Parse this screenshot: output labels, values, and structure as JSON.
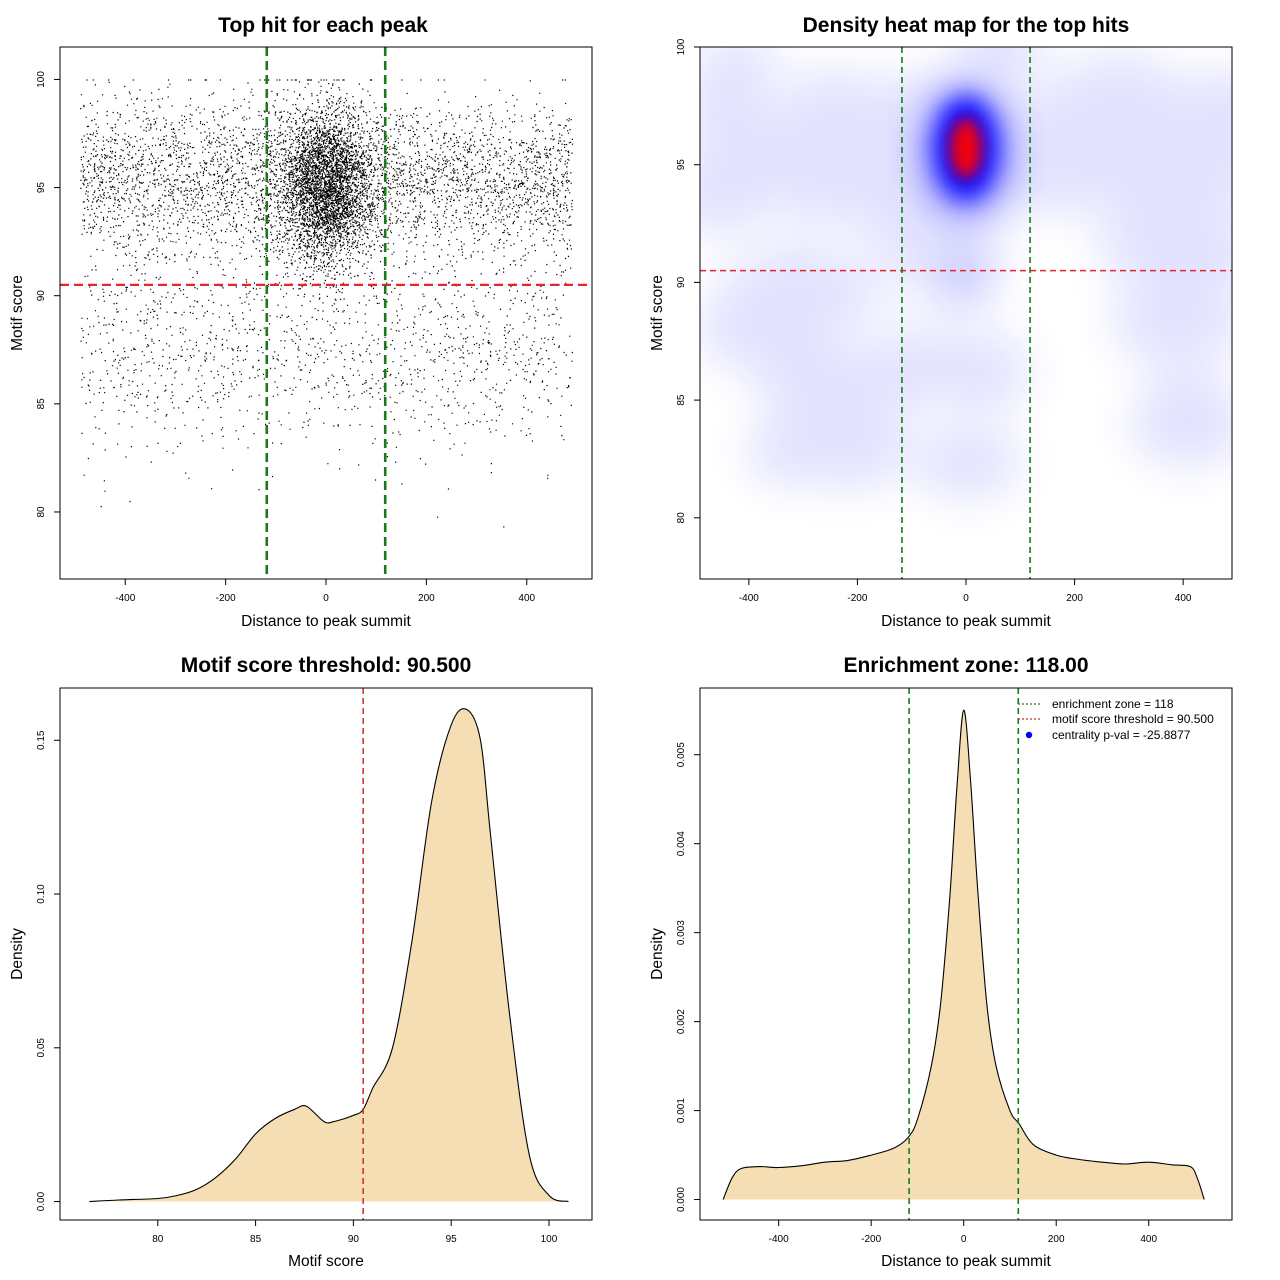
{
  "chart_data": [
    {
      "id": "p1",
      "type": "scatter",
      "title": "Top hit for each peak",
      "xlabel": "Distance to peak summit",
      "ylabel": "Motif score",
      "xlim": [
        -530,
        530
      ],
      "ylim": [
        76.9,
        101.5
      ],
      "xticks": [
        -400,
        -200,
        0,
        200,
        400
      ],
      "yticks": [
        80,
        85,
        90,
        95,
        100
      ],
      "threshold_y": 90.5,
      "zone_x": [
        -118,
        118
      ],
      "point_count": 9000,
      "colors": {
        "points": "#000000",
        "threshold": "#e4262b",
        "zone": "#1a7a1a"
      }
    },
    {
      "id": "p2",
      "type": "heatmap",
      "title": "Density heat map for the top hits",
      "xlabel": "Distance to peak summit",
      "ylabel": "Motif score",
      "xlim": [
        -490,
        490
      ],
      "ylim": [
        77.4,
        100
      ],
      "xticks": [
        -400,
        -200,
        0,
        200,
        400
      ],
      "yticks": [
        80,
        85,
        90,
        95,
        100
      ],
      "threshold_y": 90.5,
      "zone_x": [
        -118,
        118
      ],
      "hotspot": {
        "x": 0,
        "y": 95.7
      },
      "colors": {
        "low": "#ffffff",
        "mid": "#0000ff",
        "high": "#ff0000",
        "threshold": "#e4262b",
        "zone": "#1a7a1a"
      }
    },
    {
      "id": "p3",
      "type": "area",
      "title": "Motif score threshold: 90.500",
      "xlabel": "Motif score",
      "ylabel": "Density",
      "xlim": [
        75,
        102.2
      ],
      "ylim": [
        -0.006,
        0.167
      ],
      "xticks": [
        80,
        85,
        90,
        95,
        100
      ],
      "yticks": [
        0.0,
        0.05,
        0.1,
        0.15
      ],
      "ytick_labels": [
        "0.00",
        "0.05",
        "0.10",
        "0.15"
      ],
      "threshold_x": 90.5,
      "x": [
        76.5,
        78,
        80,
        81,
        82,
        83,
        84,
        85,
        86,
        87,
        87.6,
        88.5,
        89,
        90,
        90.5,
        91,
        92,
        93,
        94,
        95,
        95.8,
        96.5,
        97,
        98,
        99,
        100,
        101
      ],
      "y": [
        0.0,
        0.0005,
        0.001,
        0.002,
        0.004,
        0.008,
        0.014,
        0.022,
        0.027,
        0.03,
        0.031,
        0.026,
        0.026,
        0.028,
        0.03,
        0.037,
        0.05,
        0.085,
        0.13,
        0.155,
        0.16,
        0.15,
        0.12,
        0.06,
        0.015,
        0.002,
        0.0
      ],
      "colors": {
        "fill": "#f5deb3",
        "line": "#000000",
        "threshold": "#c2302f"
      }
    },
    {
      "id": "p4",
      "type": "area",
      "title": "Enrichment zone: 118.00",
      "xlabel": "Distance to peak summit",
      "ylabel": "Density",
      "xlim": [
        -570,
        580
      ],
      "ylim": [
        -0.00023,
        0.00575
      ],
      "xticks": [
        -400,
        -200,
        0,
        200,
        400
      ],
      "yticks": [
        0.0,
        0.001,
        0.002,
        0.003,
        0.004,
        0.005
      ],
      "ytick_labels": [
        "0.000",
        "0.001",
        "0.002",
        "0.003",
        "0.004",
        "0.005"
      ],
      "zone_x": [
        -118,
        118
      ],
      "x": [
        -520,
        -500,
        -480,
        -440,
        -400,
        -350,
        -300,
        -250,
        -200,
        -150,
        -120,
        -100,
        -70,
        -50,
        -30,
        -15,
        0,
        15,
        30,
        50,
        70,
        100,
        120,
        150,
        200,
        250,
        300,
        350,
        400,
        450,
        490,
        505,
        520
      ],
      "y": [
        0.0,
        0.00025,
        0.00035,
        0.00037,
        0.00036,
        0.00038,
        0.00042,
        0.00044,
        0.0005,
        0.00058,
        0.0007,
        0.0009,
        0.0015,
        0.0022,
        0.0034,
        0.0046,
        0.0055,
        0.0047,
        0.0035,
        0.0022,
        0.0015,
        0.001,
        0.00085,
        0.00062,
        0.0005,
        0.00045,
        0.00042,
        0.0004,
        0.00042,
        0.00039,
        0.00037,
        0.00024,
        0.0
      ],
      "colors": {
        "fill": "#f5deb3",
        "line": "#000000",
        "zone": "#1a7a1a"
      },
      "legend": {
        "placement": "top-right",
        "entries": [
          {
            "label": "enrichment zone = 118",
            "symbol": "dotted-line",
            "color": "#1a7a1a"
          },
          {
            "label": "motif score threshold = 90.500",
            "symbol": "dotted-line",
            "color": "#c2302f"
          },
          {
            "label": "centrality p-val = -25.8877",
            "symbol": "dot",
            "color": "#0000ff"
          }
        ]
      }
    }
  ]
}
